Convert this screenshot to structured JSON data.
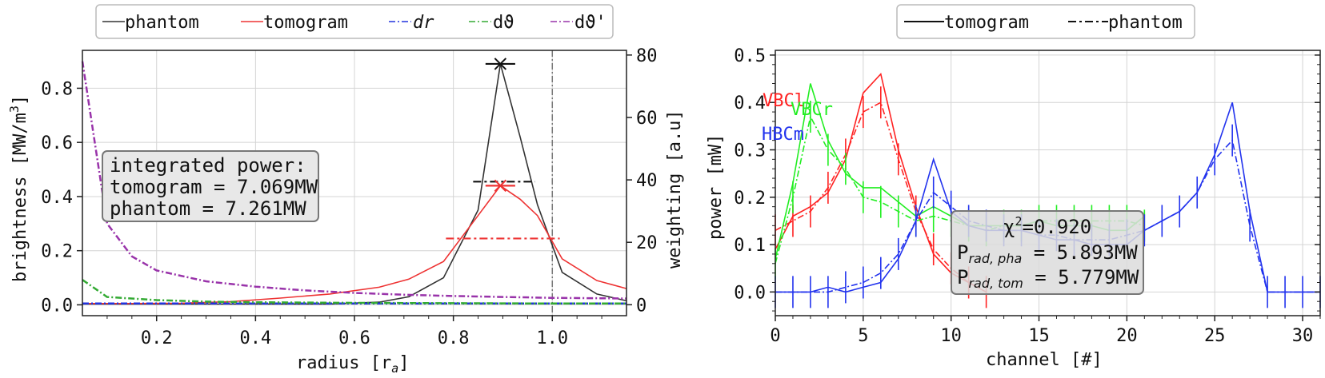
{
  "chart_data": [
    {
      "type": "line",
      "xlabel": "radius [r",
      "xlabel_sub": "a",
      "xlabel_end": "]",
      "ylabel": "brightness [MW/m",
      "ylabel_sup": "3",
      "ylabel_end": "]",
      "y2label": "weighting [a.u]",
      "xlim": [
        0.05,
        1.15
      ],
      "ylim": [
        -0.04,
        0.94
      ],
      "y2lim": [
        -3.5,
        81.5
      ],
      "xticks": [
        "0.2",
        "0.4",
        "0.6",
        "0.8",
        "1.0"
      ],
      "xtick_values": [
        0.2,
        0.4,
        0.6,
        0.8,
        1.0
      ],
      "yticks": [
        "0.0",
        "0.2",
        "0.4",
        "0.6",
        "0.8"
      ],
      "ytick_values": [
        0.0,
        0.2,
        0.4,
        0.6,
        0.8
      ],
      "y2ticks": [
        "0",
        "20",
        "40",
        "60",
        "80"
      ],
      "y2tick_values": [
        0,
        20,
        40,
        60,
        80
      ],
      "grid": true,
      "legend_position": "top-outside",
      "vline_x": 1.0,
      "series": [
        {
          "name": "phantom",
          "color": "#333333",
          "dash": "solid",
          "axis": "left",
          "x": [
            0.05,
            0.15,
            0.25,
            0.35,
            0.45,
            0.55,
            0.65,
            0.71,
            0.78,
            0.85,
            0.895,
            0.935,
            0.97,
            1.02,
            1.09,
            1.15
          ],
          "y": [
            0.003,
            0.003,
            0.003,
            0.003,
            0.003,
            0.003,
            0.01,
            0.03,
            0.1,
            0.35,
            0.89,
            0.62,
            0.37,
            0.12,
            0.04,
            0.015
          ]
        },
        {
          "name": "tomogram",
          "color": "#ee3333",
          "dash": "solid",
          "axis": "left",
          "x": [
            0.05,
            0.15,
            0.25,
            0.35,
            0.45,
            0.55,
            0.65,
            0.71,
            0.78,
            0.85,
            0.895,
            0.935,
            0.97,
            1.02,
            1.09,
            1.15
          ],
          "y": [
            0.005,
            0.005,
            0.006,
            0.012,
            0.025,
            0.04,
            0.065,
            0.095,
            0.16,
            0.33,
            0.44,
            0.39,
            0.33,
            0.17,
            0.09,
            0.06
          ]
        },
        {
          "name": "dr",
          "name_style": "italic-r",
          "color": "#2233dd",
          "dash": "dashdot",
          "axis": "right",
          "x": [
            0.05,
            0.15,
            0.3,
            0.5,
            0.7,
            0.9,
            1.0,
            1.15
          ],
          "y": [
            0.4,
            0.4,
            0.4,
            0.4,
            0.4,
            0.4,
            0.4,
            0.4
          ]
        },
        {
          "name": "dϑ",
          "color": "#33aa33",
          "dash": "dashdot",
          "axis": "right",
          "x": [
            0.05,
            0.1,
            0.2,
            0.3,
            0.4,
            0.6,
            0.8,
            1.0,
            1.15
          ],
          "y": [
            8,
            2.5,
            1.5,
            1.0,
            0.8,
            0.6,
            0.5,
            0.4,
            0.4
          ]
        },
        {
          "name": "dϑ'",
          "color": "#9933aa",
          "dash": "dashdot",
          "axis": "right",
          "x": [
            0.05,
            0.1,
            0.15,
            0.2,
            0.3,
            0.4,
            0.5,
            0.6,
            0.7,
            0.8,
            0.9,
            1.0,
            1.15
          ],
          "y": [
            78,
            26,
            15.5,
            11,
            7.5,
            5.8,
            4.6,
            3.8,
            3.2,
            2.8,
            2.5,
            2.2,
            2.0
          ]
        }
      ],
      "markers": [
        {
          "x": 0.895,
          "y": 0.89,
          "color": "#111111",
          "symbol": "x"
        },
        {
          "x": 0.895,
          "y": 0.44,
          "color": "#ee3333",
          "symbol": "x"
        }
      ],
      "hbars": [
        {
          "x1": 0.865,
          "x2": 0.925,
          "y": 0.89,
          "color": "#111111",
          "dash": "solid"
        },
        {
          "x1": 0.84,
          "x2": 0.965,
          "y": 0.455,
          "color": "#111111",
          "dash": "dashdot"
        },
        {
          "x1": 0.865,
          "x2": 0.925,
          "y": 0.44,
          "color": "#ee3333",
          "dash": "solid"
        },
        {
          "x1": 0.785,
          "x2": 1.015,
          "y": 0.245,
          "color": "#ee3333",
          "dash": "dashdot"
        }
      ],
      "annotation": {
        "lines": [
          "integrated power:",
          "tomogram = 7.069MW",
          "phantom = 7.261MW"
        ]
      }
    },
    {
      "type": "line",
      "xlabel": "channel [#]",
      "ylabel": "power [mW]",
      "xlim": [
        0,
        31
      ],
      "ylim": [
        -0.05,
        0.51
      ],
      "xticks": [
        "0",
        "5",
        "10",
        "15",
        "20",
        "25",
        "30"
      ],
      "xtick_values": [
        0,
        5,
        10,
        15,
        20,
        25,
        30
      ],
      "yticks": [
        "0.0",
        "0.1",
        "0.2",
        "0.3",
        "0.4",
        "0.5"
      ],
      "ytick_values": [
        0.0,
        0.1,
        0.2,
        0.3,
        0.4,
        0.5
      ],
      "grid": true,
      "legend_position": "top-outside",
      "legend": [
        {
          "name": "tomogram",
          "dash": "solid"
        },
        {
          "name": "phantom",
          "dash": "dashdot"
        }
      ],
      "groups": [
        {
          "name": "VBCl",
          "color": "#ff2222",
          "x": [
            0,
            1,
            2,
            3,
            4,
            5,
            6,
            7,
            8,
            9,
            10,
            11,
            12
          ],
          "tomogram": [
            0.09,
            0.16,
            0.18,
            0.21,
            0.28,
            0.42,
            0.46,
            0.3,
            0.18,
            0.08,
            0.04,
            0.02,
            0.0
          ],
          "phantom": [
            0.13,
            0.15,
            0.17,
            0.22,
            0.29,
            0.38,
            0.4,
            0.28,
            0.17,
            0.09,
            0.05,
            0.02,
            0.0
          ]
        },
        {
          "name": "VBCr",
          "color": "#22ee22",
          "x": [
            0,
            1,
            2,
            3,
            4,
            5,
            6,
            7,
            8,
            9,
            10,
            11,
            12,
            13,
            14,
            15,
            16,
            17,
            18,
            19,
            20,
            21
          ],
          "tomogram": [
            0.07,
            0.23,
            0.44,
            0.32,
            0.25,
            0.22,
            0.22,
            0.19,
            0.16,
            0.18,
            0.16,
            0.14,
            0.14,
            0.14,
            0.14,
            0.15,
            0.14,
            0.14,
            0.14,
            0.13,
            0.13,
            0.16
          ],
          "phantom": [
            0.06,
            0.2,
            0.37,
            0.3,
            0.26,
            0.2,
            0.19,
            0.17,
            0.15,
            0.16,
            0.15,
            0.14,
            0.13,
            0.14,
            0.14,
            0.15,
            0.15,
            0.15,
            0.15,
            0.15,
            0.15,
            0.14
          ]
        },
        {
          "name": "HBCm",
          "color": "#2233ee",
          "x": [
            0,
            1,
            2,
            3,
            4,
            5,
            6,
            7,
            8,
            9,
            10,
            11,
            12,
            13,
            14,
            15,
            16,
            17,
            18,
            19,
            20,
            21,
            22,
            23,
            24,
            25,
            26,
            27,
            28,
            29,
            30,
            31
          ],
          "tomogram": [
            0.0,
            0.0,
            0.0,
            0.01,
            0.0,
            0.01,
            0.02,
            0.07,
            0.15,
            0.28,
            0.17,
            0.14,
            0.13,
            0.13,
            0.13,
            0.12,
            0.11,
            0.11,
            0.1,
            0.1,
            0.1,
            0.13,
            0.15,
            0.17,
            0.21,
            0.29,
            0.4,
            0.17,
            0.0,
            0.0,
            0.0,
            0.0
          ],
          "phantom": [
            0.0,
            0.0,
            0.0,
            0.0,
            0.01,
            0.02,
            0.04,
            0.08,
            0.15,
            0.21,
            0.18,
            0.15,
            0.14,
            0.13,
            0.13,
            0.12,
            0.12,
            0.11,
            0.11,
            0.11,
            0.12,
            0.13,
            0.15,
            0.17,
            0.21,
            0.28,
            0.32,
            0.14,
            0.0,
            0.0,
            0.0,
            0.0
          ]
        }
      ],
      "group_labels": [
        {
          "name": "VBCl",
          "color": "#ff2222"
        },
        {
          "name": "VBCr",
          "color": "#22ee22"
        },
        {
          "name": "HBCm",
          "color": "#2233ee"
        }
      ],
      "annotation": {
        "chi_prefix": "χ",
        "chi_sup": "2",
        "chi_value": "=0.920",
        "line2_prefix": "P",
        "line2_sub": "rad, pha",
        "line2_value": " = 5.893MW",
        "line3_prefix": "P",
        "line3_sub": "rad, tom",
        "line3_value": " = 5.779MW"
      }
    }
  ]
}
